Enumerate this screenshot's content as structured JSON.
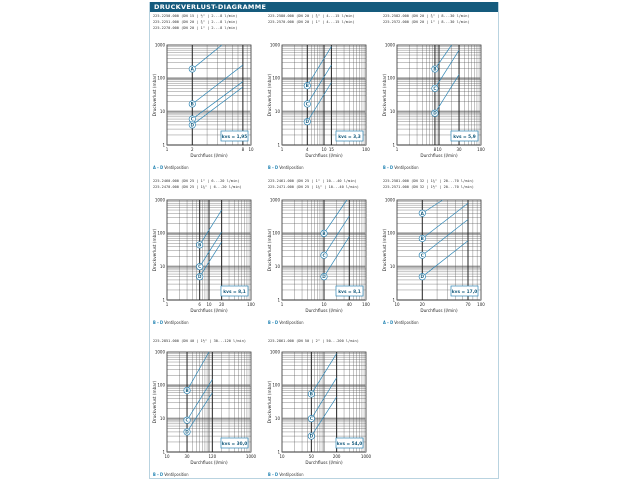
{
  "header": {
    "title": "DRUCKVERLUST-DIAGRAMME"
  },
  "colors": {
    "accent": "#155b7d",
    "line": "#2e86b5",
    "grid": "#888888",
    "border": "#b9d3e0"
  },
  "charts": [
    {
      "codes": [
        "225.2250.000 (DN 15 | ½\" | 2...8 l/min)",
        "225.2251.000 (DN 20 | ¾\" | 2...8 l/min)",
        "225.2270.000 (DN 20 | 1\" | 2...8 l/min)"
      ],
      "kvs": "kvs = 1,95",
      "xlabel": "Durchfluss (l/min)",
      "ylabel": "Druckverlust (mbar)",
      "xticks": [
        "1",
        "2",
        "8",
        "10"
      ],
      "yticks": [
        "1000",
        "100",
        "10",
        "1"
      ],
      "legend_range": "A – D",
      "legend_text": "Ventilposition"
    },
    {
      "codes": [
        "225.2580.000 (DN 20 | ¾\" | 4...15 l/min)",
        "225.2570.000 (DN 20 | 1\" | 4...15 l/min)"
      ],
      "kvs": "kvs = 3,3",
      "xlabel": "Durchfluss (l/min)",
      "ylabel": "Druckverlust (mbar)",
      "xticks": [
        "1",
        "4",
        "10",
        "15",
        "100"
      ],
      "yticks": [
        "1000",
        "100",
        "10",
        "1"
      ],
      "legend_range": "B – D",
      "legend_text": "Ventilposition"
    },
    {
      "codes": [
        "225.2582.000 (DN 20 | ¾\" | 8...30 l/min)",
        "225.2572.000 (DN 20 | 1\" | 8...30 l/min)"
      ],
      "kvs": "kvs = 5,9",
      "xlabel": "Durchfluss (l/min)",
      "ylabel": "Druckverlust (mbar)",
      "xticks": [
        "1",
        "8",
        "10",
        "30",
        "100"
      ],
      "yticks": [
        "1000",
        "100",
        "10",
        "1"
      ],
      "legend_range": "B – D",
      "legend_text": "Ventilposition"
    },
    {
      "codes": [
        "225.2460.000 (DN 25 | 1\" | 6...20 l/min)",
        "225.2470.000 (DN 25 | 1¼\" | 6...20 l/min)"
      ],
      "kvs": "kvs = 8,1",
      "xlabel": "Durchfluss (l/min)",
      "ylabel": "Druckverlust (mbar)",
      "xticks": [
        "1",
        "6",
        "10",
        "20",
        "100"
      ],
      "yticks": [
        "1000",
        "100",
        "10",
        "1"
      ],
      "legend_range": "B – D",
      "legend_text": "Ventilposition"
    },
    {
      "codes": [
        "225.2461.000 (DN 25 | 1\" | 10...40 l/min)",
        "225.2471.000 (DN 25 | 1¼\" | 10...40 l/min)"
      ],
      "kvs": "kvs = 8,1",
      "xlabel": "Durchfluss (l/min)",
      "ylabel": "Druckverlust (mbar)",
      "xticks": [
        "1",
        "10",
        "40",
        "100"
      ],
      "yticks": [
        "1000",
        "100",
        "10",
        "1"
      ],
      "legend_range": "B – D",
      "legend_text": "Ventilposition"
    },
    {
      "codes": [
        "225.2581.000 (DN 32 | 1¼\" | 20...70 l/min)",
        "225.2571.000 (DN 32 | 1½\" | 20...70 l/min)"
      ],
      "kvs": "kvs = 17,0",
      "xlabel": "Durchfluss (l/min)",
      "ylabel": "Druckverlust (mbar)",
      "xticks": [
        "10",
        "20",
        "70",
        "100"
      ],
      "yticks": [
        "1000",
        "100",
        "10",
        "1"
      ],
      "legend_range": "A – D",
      "legend_text": "Ventilposition"
    },
    {
      "codes": [
        "225.2851.000 (DN 40 | 1½\" | 30...120 l/min)"
      ],
      "kvs": "kvs = 30,0",
      "xlabel": "Durchfluss (l/min)",
      "ylabel": "Druckverlust (mbar)",
      "xticks": [
        "10",
        "30",
        "120",
        "1000"
      ],
      "yticks": [
        "1000",
        "100",
        "10",
        "1"
      ],
      "legend_range": "B – D",
      "legend_text": "Ventilposition"
    },
    {
      "codes": [
        "225.2861.000 (DN 50 | 2\" | 50...200 l/min)"
      ],
      "kvs": "kvs = 54,0",
      "xlabel": "Durchfluss (l/min)",
      "ylabel": "Druckverlust (mbar)",
      "xticks": [
        "10",
        "50",
        "200",
        "1000"
      ],
      "yticks": [
        "1000",
        "100",
        "10",
        "1"
      ],
      "legend_range": "B – D",
      "legend_text": "Ventilposition"
    }
  ],
  "chart_data": [
    {
      "type": "line",
      "title": "225.2250.000 / 225.2251.000 / 225.2270.000",
      "xlabel": "Durchfluss (l/min)",
      "ylabel": "Druckverlust (mbar)",
      "xscale": "log",
      "yscale": "log",
      "xlim": [
        1,
        10
      ],
      "ylim": [
        1,
        1000
      ],
      "annotation": "kvs = 1,95",
      "series": [
        {
          "name": "A",
          "x": [
            2,
            4.5
          ],
          "values": [
            190,
            1000
          ]
        },
        {
          "name": "B",
          "x": [
            2,
            8
          ],
          "values": [
            17,
            250
          ]
        },
        {
          "name": "C",
          "x": [
            2,
            8
          ],
          "values": [
            6,
            80
          ]
        },
        {
          "name": "D",
          "x": [
            2,
            8
          ],
          "values": [
            4,
            55
          ]
        }
      ]
    },
    {
      "type": "line",
      "title": "225.2580.000 / 225.2570.000",
      "xlabel": "Durchfluss (l/min)",
      "ylabel": "Druckverlust (mbar)",
      "xscale": "log",
      "yscale": "log",
      "xlim": [
        1,
        100
      ],
      "ylim": [
        1,
        1000
      ],
      "annotation": "kvs = 3,3",
      "series": [
        {
          "name": "B",
          "x": [
            4,
            15
          ],
          "values": [
            60,
            900
          ]
        },
        {
          "name": "C",
          "x": [
            4,
            15
          ],
          "values": [
            17,
            250
          ]
        },
        {
          "name": "D",
          "x": [
            4,
            15
          ],
          "values": [
            5,
            75
          ]
        }
      ]
    },
    {
      "type": "line",
      "title": "225.2582.000 / 225.2572.000",
      "xlabel": "Durchfluss (l/min)",
      "ylabel": "Druckverlust (mbar)",
      "xscale": "log",
      "yscale": "log",
      "xlim": [
        1,
        100
      ],
      "ylim": [
        1,
        1000
      ],
      "annotation": "kvs = 5,9",
      "series": [
        {
          "name": "B",
          "x": [
            8,
            20
          ],
          "values": [
            190,
            1000
          ]
        },
        {
          "name": "C",
          "x": [
            8,
            30
          ],
          "values": [
            50,
            700
          ]
        },
        {
          "name": "D",
          "x": [
            8,
            30
          ],
          "values": [
            9,
            130
          ]
        }
      ]
    },
    {
      "type": "line",
      "title": "225.2460.000 / 225.2470.000",
      "xlabel": "Durchfluss (l/min)",
      "ylabel": "Druckverlust (mbar)",
      "xscale": "log",
      "yscale": "log",
      "xlim": [
        1,
        100
      ],
      "ylim": [
        1,
        1000
      ],
      "annotation": "kvs = 8,1",
      "series": [
        {
          "name": "B",
          "x": [
            6,
            20
          ],
          "values": [
            45,
            500
          ]
        },
        {
          "name": "C",
          "x": [
            6,
            20
          ],
          "values": [
            10,
            110
          ]
        },
        {
          "name": "D",
          "x": [
            6,
            20
          ],
          "values": [
            5,
            55
          ]
        }
      ]
    },
    {
      "type": "line",
      "title": "225.2461.000 / 225.2471.000",
      "xlabel": "Durchfluss (l/min)",
      "ylabel": "Druckverlust (mbar)",
      "xscale": "log",
      "yscale": "log",
      "xlim": [
        1,
        100
      ],
      "ylim": [
        1,
        1000
      ],
      "annotation": "kvs = 8,1",
      "series": [
        {
          "name": "B",
          "x": [
            10,
            35
          ],
          "values": [
            100,
            1000
          ]
        },
        {
          "name": "C",
          "x": [
            10,
            40
          ],
          "values": [
            22,
            330
          ]
        },
        {
          "name": "D",
          "x": [
            10,
            40
          ],
          "values": [
            5,
            80
          ]
        }
      ]
    },
    {
      "type": "line",
      "title": "225.2581.000 / 225.2571.000",
      "xlabel": "Durchfluss (l/min)",
      "ylabel": "Druckverlust (mbar)",
      "xscale": "log",
      "yscale": "log",
      "xlim": [
        10,
        100
      ],
      "ylim": [
        1,
        1000
      ],
      "annotation": "kvs = 17,0",
      "series": [
        {
          "name": "A",
          "x": [
            20,
            35
          ],
          "values": [
            400,
            1000
          ]
        },
        {
          "name": "B",
          "x": [
            20,
            70
          ],
          "values": [
            70,
            800
          ]
        },
        {
          "name": "C",
          "x": [
            20,
            70
          ],
          "values": [
            22,
            260
          ]
        },
        {
          "name": "D",
          "x": [
            20,
            70
          ],
          "values": [
            5,
            60
          ]
        }
      ]
    },
    {
      "type": "line",
      "title": "225.2851.000",
      "xlabel": "Durchfluss (l/min)",
      "ylabel": "Druckverlust (mbar)",
      "xscale": "log",
      "yscale": "log",
      "xlim": [
        10,
        1000
      ],
      "ylim": [
        1,
        1000
      ],
      "annotation": "kvs = 30,0",
      "series": [
        {
          "name": "B",
          "x": [
            30,
            100
          ],
          "values": [
            70,
            1000
          ]
        },
        {
          "name": "C",
          "x": [
            30,
            120
          ],
          "values": [
            9,
            150
          ]
        },
        {
          "name": "D",
          "x": [
            30,
            120
          ],
          "values": [
            4,
            60
          ]
        }
      ]
    },
    {
      "type": "line",
      "title": "225.2861.000",
      "xlabel": "Durchfluss (l/min)",
      "ylabel": "Druckverlust (mbar)",
      "xscale": "log",
      "yscale": "log",
      "xlim": [
        10,
        1000
      ],
      "ylim": [
        1,
        1000
      ],
      "annotation": "kvs = 54,0",
      "series": [
        {
          "name": "B",
          "x": [
            50,
            200
          ],
          "values": [
            55,
            900
          ]
        },
        {
          "name": "C",
          "x": [
            50,
            200
          ],
          "values": [
            10,
            170
          ]
        },
        {
          "name": "D",
          "x": [
            50,
            200
          ],
          "values": [
            3,
            45
          ]
        }
      ]
    }
  ]
}
